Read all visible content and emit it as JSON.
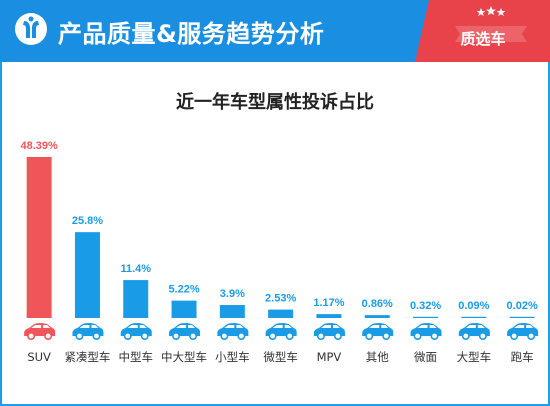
{
  "header": {
    "title": "产品质量&服务趋势分析",
    "badge": "质选车",
    "brand_color": "#1a8ee0",
    "badge_color": "#e8424a"
  },
  "chart_data": {
    "type": "bar",
    "title": "近一年车型属性投诉占比",
    "categories": [
      "SUV",
      "紧凑型车",
      "中型车",
      "中大型车",
      "小型车",
      "微型车",
      "MPV",
      "其他",
      "微面",
      "大型车",
      "跑车"
    ],
    "values": [
      48.39,
      25.8,
      11.4,
      5.22,
      3.9,
      2.53,
      1.17,
      0.86,
      0.32,
      0.09,
      0.02
    ],
    "labels": [
      "48.39%",
      "25.8%",
      "11.4%",
      "5.22%",
      "3.9%",
      "2.53%",
      "1.17%",
      "0.86%",
      "0.32%",
      "0.09%",
      "0.02%"
    ],
    "highlight_index": 0,
    "colors": {
      "highlight": "#f0555a",
      "normal": "#1a9be6"
    },
    "xlabel": "",
    "ylabel": "",
    "grid": false,
    "legend": "none",
    "icons": [
      "sedan-icon",
      "sedan-icon",
      "sedan-icon",
      "sedan-icon",
      "hatchback-icon",
      "smart-car-icon",
      "minivan-icon",
      "pickup-icon",
      "van-icon",
      "sedan-icon",
      "sports-car-icon"
    ]
  }
}
